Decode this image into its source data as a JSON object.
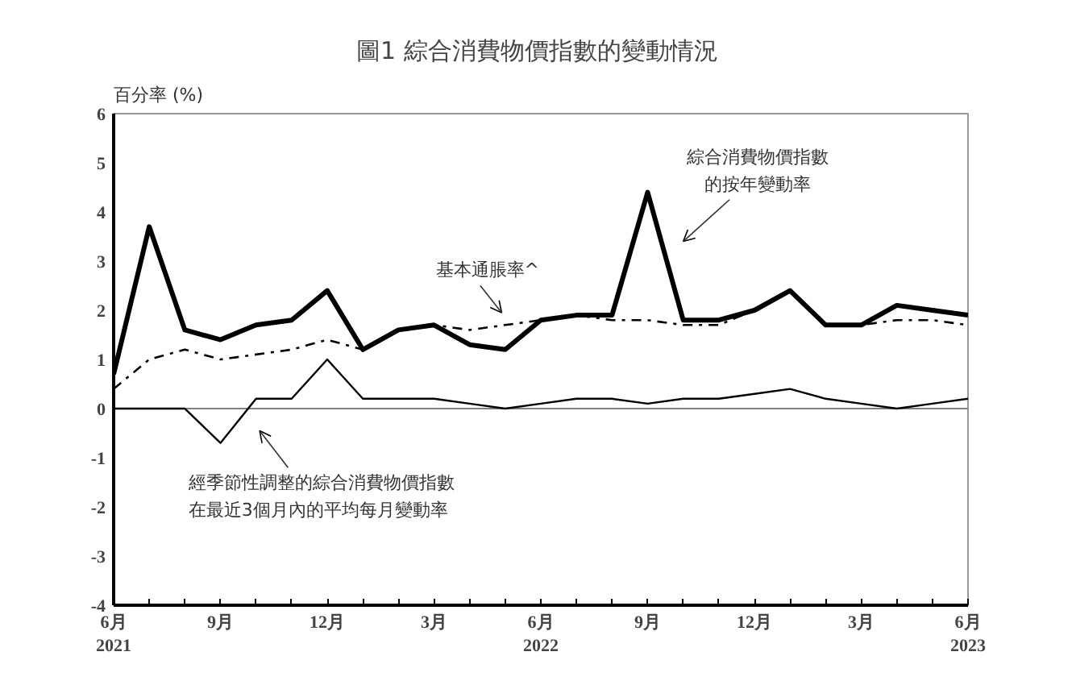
{
  "chart_data": {
    "type": "line",
    "title": "圖1  綜合消費物價指數的變動情況",
    "ylabel": "百分率 (%)",
    "x": [
      "2021-06",
      "2021-07",
      "2021-08",
      "2021-09",
      "2021-10",
      "2021-11",
      "2021-12",
      "2022-01",
      "2022-02",
      "2022-03",
      "2022-04",
      "2022-05",
      "2022-06",
      "2022-07",
      "2022-08",
      "2022-09",
      "2022-10",
      "2022-11",
      "2022-12",
      "2023-01",
      "2023-02",
      "2023-03",
      "2023-04",
      "2023-05",
      "2023-06"
    ],
    "series": [
      {
        "color": "#000000",
        "line_style": "solid",
        "values": [
          0.7,
          3.7,
          1.6,
          1.4,
          1.7,
          1.8,
          2.4,
          1.2,
          1.6,
          1.7,
          1.3,
          1.2,
          1.8,
          1.9,
          1.9,
          4.4,
          1.8,
          1.8,
          2.0,
          2.4,
          1.7,
          1.7,
          2.1,
          2.0,
          1.9
        ]
      },
      {
        "color": "#000000",
        "line_style": "dashdot",
        "values": [
          0.4,
          1.0,
          1.2,
          1.0,
          1.1,
          1.2,
          1.4,
          1.2,
          1.6,
          1.7,
          1.6,
          1.7,
          1.8,
          1.9,
          1.8,
          1.8,
          1.7,
          1.7,
          2.0,
          2.4,
          1.7,
          1.7,
          1.8,
          1.8,
          1.7
        ]
      },
      {
        "color": "#000000",
        "line_style": "solid",
        "values": [
          0,
          0,
          0,
          -0.7,
          0.2,
          0.2,
          1.0,
          0.2,
          0.2,
          0.2,
          0.1,
          0.0,
          0.1,
          0.2,
          0.2,
          0.1,
          0.2,
          0.2,
          0.3,
          0.4,
          0.2,
          0.1,
          0.0,
          0.1,
          0.2
        ]
      }
    ],
    "annotations": [
      "綜合消費物價指數的按年變動率",
      "基本通脹率^",
      "經季節性調整的綜合消費物價指數在最近3個月內的平均每月變動率"
    ],
    "xlim": [
      "2021-06",
      "2023-06"
    ],
    "xticks": [
      {
        "value": "2021-06",
        "label": "6月\n2021"
      },
      {
        "value": "2021-07",
        "label": null
      },
      {
        "value": "2021-08",
        "label": null
      },
      {
        "value": "2021-09",
        "label": "9月"
      },
      {
        "value": "2021-10",
        "label": null
      },
      {
        "value": "2021-11",
        "label": null
      },
      {
        "value": "2021-12",
        "label": "12月"
      },
      {
        "value": "2022-01",
        "label": null
      },
      {
        "value": "2022-02",
        "label": null
      },
      {
        "value": "2022-03",
        "label": "3月"
      },
      {
        "value": "2022-04",
        "label": null
      },
      {
        "value": "2022-05",
        "label": null
      },
      {
        "value": "2022-06",
        "label": "6月\n2022"
      },
      {
        "value": "2022-07",
        "label": null
      },
      {
        "value": "2022-08",
        "label": null
      },
      {
        "value": "2022-09",
        "label": "9月"
      },
      {
        "value": "2022-10",
        "label": null
      },
      {
        "value": "2022-11",
        "label": null
      },
      {
        "value": "2022-12",
        "label": "12月"
      },
      {
        "value": "2023-01",
        "label": null
      },
      {
        "value": "2023-02",
        "label": null
      },
      {
        "value": "2023-03",
        "label": "3月"
      },
      {
        "value": "2023-04",
        "label": null
      },
      {
        "value": "2023-05",
        "label": null
      },
      {
        "value": "2023-06",
        "label": "6月\n2023"
      }
    ],
    "ylim": [
      -4,
      6
    ],
    "yticks": [
      -4,
      -3,
      -2,
      -1,
      0,
      1,
      2,
      3,
      4,
      5,
      6
    ],
    "ref_lines": [
      {
        "axis": "y",
        "value": 0,
        "color": "#808080"
      }
    ],
    "grid": false
  }
}
